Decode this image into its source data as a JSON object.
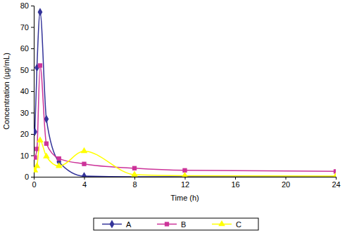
{
  "chart_data": {
    "type": "line",
    "x_label": "Time (h)",
    "y_label": "Concentration (µg/mL)",
    "x": [
      0.083,
      0.25,
      0.5,
      1,
      2,
      4,
      8,
      12,
      24
    ],
    "series": [
      {
        "name": "A",
        "color": "#333399",
        "marker": "diamond",
        "values": [
          21,
          51,
          77,
          27,
          7,
          0.3,
          0,
          0,
          0
        ]
      },
      {
        "name": "B",
        "color": "#cc3399",
        "marker": "square",
        "values": [
          9,
          13,
          52,
          15.5,
          8.5,
          6,
          4,
          3,
          2.5
        ]
      },
      {
        "name": "C",
        "color": "#ffff00",
        "marker": "triangle",
        "values": [
          3,
          5,
          17,
          9.5,
          5,
          12,
          1,
          0.5,
          0.3
        ]
      }
    ],
    "line_style": "smooth",
    "xlim": [
      0,
      24
    ],
    "xticks": [
      0,
      4,
      8,
      12,
      16,
      20,
      24
    ],
    "ylim": [
      0,
      80
    ],
    "yticks": [
      0,
      10,
      20,
      30,
      40,
      50,
      60,
      70,
      80
    ],
    "grid": false,
    "legend": "bottom"
  }
}
